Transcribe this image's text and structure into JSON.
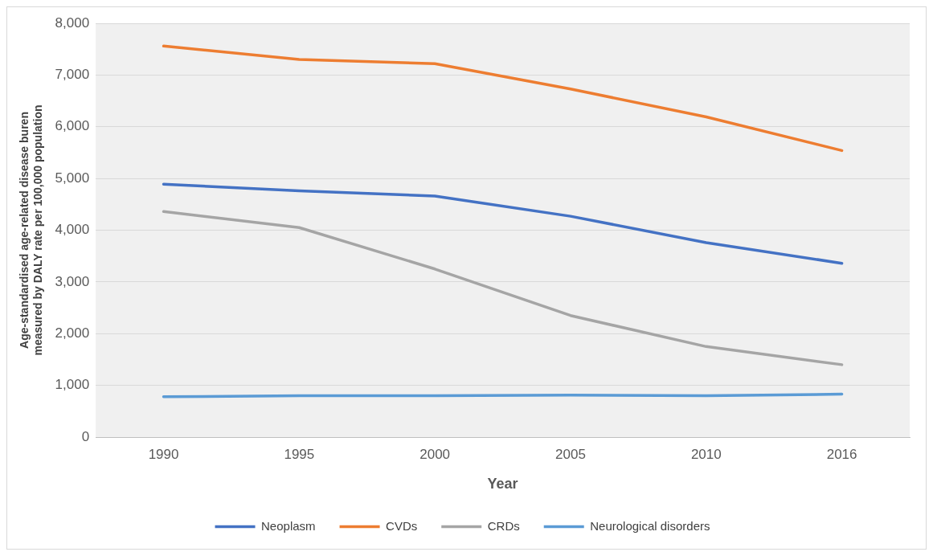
{
  "chart_data": {
    "type": "line",
    "xlabel": "Year",
    "ylabel": "Age-standardised age-related disease buren measured by DALY rate per 100,000 population",
    "categories": [
      "1990",
      "1995",
      "2000",
      "2005",
      "2010",
      "2016"
    ],
    "series": [
      {
        "name": "Neoplasm",
        "color": "#4472c4",
        "values": [
          4890,
          4760,
          4660,
          4270,
          3760,
          3360
        ]
      },
      {
        "name": "CVDs",
        "color": "#ed7d31",
        "values": [
          7560,
          7300,
          7220,
          6730,
          6190,
          5540
        ]
      },
      {
        "name": "CRDs",
        "color": "#a5a5a5",
        "values": [
          4360,
          4050,
          3250,
          2350,
          1750,
          1400
        ]
      },
      {
        "name": "Neurological disorders",
        "color": "#5b9bd5",
        "values": [
          780,
          800,
          800,
          810,
          800,
          830
        ]
      }
    ],
    "ylim": [
      0,
      8000
    ],
    "yticks": [
      {
        "value": 0,
        "label": "0"
      },
      {
        "value": 1000,
        "label": "1,000"
      },
      {
        "value": 2000,
        "label": "2,000"
      },
      {
        "value": 3000,
        "label": "3,000"
      },
      {
        "value": 4000,
        "label": "4,000"
      },
      {
        "value": 5000,
        "label": "5,000"
      },
      {
        "value": 6000,
        "label": "6,000"
      },
      {
        "value": 7000,
        "label": "7,000"
      },
      {
        "value": 8000,
        "label": "8,000"
      }
    ],
    "grid": "y",
    "legend": "bottom",
    "marker": "none",
    "line_style": "solid"
  }
}
